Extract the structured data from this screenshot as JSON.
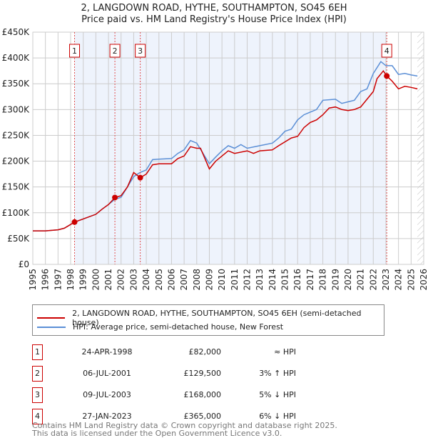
{
  "title": "2, LANGDOWN ROAD, HYTHE, SOUTHAMPTON, SO45 6EH",
  "subtitle": "Price paid vs. HM Land Registry's House Price Index (HPI)",
  "chart_data": {
    "type": "line",
    "title": "2, LANGDOWN ROAD, HYTHE, SOUTHAMPTON, SO45 6EH",
    "ylim": [
      0,
      450000
    ],
    "xlim": [
      1995,
      2026
    ],
    "yticks": [
      0,
      50000,
      100000,
      150000,
      200000,
      250000,
      300000,
      350000,
      400000,
      450000
    ],
    "ytick_labels": [
      "£0",
      "£50K",
      "£100K",
      "£150K",
      "£200K",
      "£250K",
      "£300K",
      "£350K",
      "£400K",
      "£450K"
    ],
    "xticks": [
      "1995",
      "1996",
      "1997",
      "1998",
      "1999",
      "2000",
      "2001",
      "2002",
      "2003",
      "2004",
      "2005",
      "2006",
      "2007",
      "2008",
      "2009",
      "2010",
      "2011",
      "2012",
      "2013",
      "2014",
      "2015",
      "2016",
      "2017",
      "2018",
      "2019",
      "2020",
      "2021",
      "2022",
      "2023",
      "2024",
      "2025",
      "2026"
    ],
    "shade_range": [
      1998.31,
      2023.07
    ],
    "hatch_from": 2025.5,
    "colors": {
      "price": "#cc0000",
      "hpi": "#5b8fd6",
      "shade": "#eef3fc"
    },
    "series": [
      {
        "name": "2, LANGDOWN ROAD, HYTHE, SOUTHAMPTON, SO45 6EH (semi-detached house)",
        "color": "#cc0000",
        "x": [
          1995,
          1996,
          1997,
          1997.5,
          1998.31,
          1999,
          2000,
          2000.5,
          2001,
          2001.51,
          2002,
          2002.5,
          2003,
          2003.52,
          2004,
          2004.5,
          2005,
          2006,
          2006.5,
          2007,
          2007.5,
          2008,
          2008.3,
          2009,
          2009.5,
          2010,
          2010.5,
          2011,
          2012,
          2012.5,
          2013,
          2014,
          2014.5,
          2015.5,
          2016,
          2016.5,
          2017,
          2017.5,
          2018,
          2018.5,
          2019,
          2019.5,
          2020,
          2020.5,
          2021,
          2021.5,
          2022,
          2022.3,
          2022.8,
          2023.07,
          2023.5,
          2024,
          2024.5,
          2025,
          2025.5
        ],
        "values": [
          65000,
          65000,
          67000,
          70000,
          82000,
          88000,
          97000,
          107000,
          116000,
          129500,
          133000,
          150000,
          178000,
          168000,
          175000,
          193000,
          195000,
          195000,
          205000,
          210000,
          228000,
          225000,
          225000,
          185000,
          200000,
          210000,
          220000,
          215000,
          220000,
          215000,
          220000,
          222000,
          230000,
          245000,
          248000,
          265000,
          275000,
          280000,
          290000,
          303000,
          305000,
          300000,
          298000,
          300000,
          305000,
          320000,
          335000,
          360000,
          375000,
          365000,
          355000,
          340000,
          345000,
          343000,
          340000
        ]
      },
      {
        "name": "HPI: Average price, semi-detached house, New Forest",
        "color": "#5b8fd6",
        "x": [
          1995,
          1996,
          1997,
          1997.5,
          1998.31,
          1999,
          2000,
          2000.5,
          2001,
          2001.5,
          2002,
          2002.5,
          2003,
          2003.5,
          2004,
          2004.5,
          2005,
          2006,
          2006.5,
          2007,
          2007.5,
          2008,
          2009,
          2009.5,
          2010,
          2010.5,
          2011,
          2011.5,
          2012,
          2013,
          2014,
          2014.5,
          2015,
          2015.5,
          2016,
          2016.5,
          2017,
          2017.5,
          2018,
          2019,
          2019.5,
          2020,
          2020.5,
          2021,
          2021.5,
          2022,
          2022.6,
          2023,
          2023.5,
          2024,
          2024.5,
          2025,
          2025.5
        ],
        "values": [
          65000,
          65000,
          67000,
          70000,
          82000,
          88000,
          97000,
          107000,
          116000,
          126000,
          130000,
          150000,
          170000,
          178000,
          183000,
          203000,
          204000,
          205000,
          215000,
          222000,
          240000,
          235000,
          195000,
          208000,
          220000,
          230000,
          225000,
          232000,
          225000,
          230000,
          235000,
          245000,
          258000,
          262000,
          280000,
          290000,
          295000,
          300000,
          318000,
          320000,
          312000,
          315000,
          318000,
          335000,
          340000,
          370000,
          393000,
          385000,
          385000,
          368000,
          370000,
          367000,
          365000
        ]
      }
    ],
    "sales": [
      {
        "label": "1",
        "x": 1998.31,
        "value": 82000,
        "date": "24-APR-1998",
        "price": "£82,000",
        "hpi": "≈ HPI"
      },
      {
        "label": "2",
        "x": 2001.51,
        "value": 129500,
        "date": "06-JUL-2001",
        "price": "£129,500",
        "hpi": "3% ↑ HPI"
      },
      {
        "label": "3",
        "x": 2003.52,
        "value": 168000,
        "date": "09-JUL-2003",
        "price": "£168,000",
        "hpi": "5% ↓ HPI"
      },
      {
        "label": "4",
        "x": 2023.07,
        "value": 365000,
        "date": "27-JAN-2023",
        "price": "£365,000",
        "hpi": "6% ↓ HPI"
      }
    ]
  },
  "legend": {
    "price": "2, LANGDOWN ROAD, HYTHE, SOUTHAMPTON, SO45 6EH (semi-detached house)",
    "hpi": "HPI: Average price, semi-detached house, New Forest"
  },
  "footer": {
    "line1": "Contains HM Land Registry data © Crown copyright and database right 2025.",
    "line2": "This data is licensed under the Open Government Licence v3.0."
  }
}
